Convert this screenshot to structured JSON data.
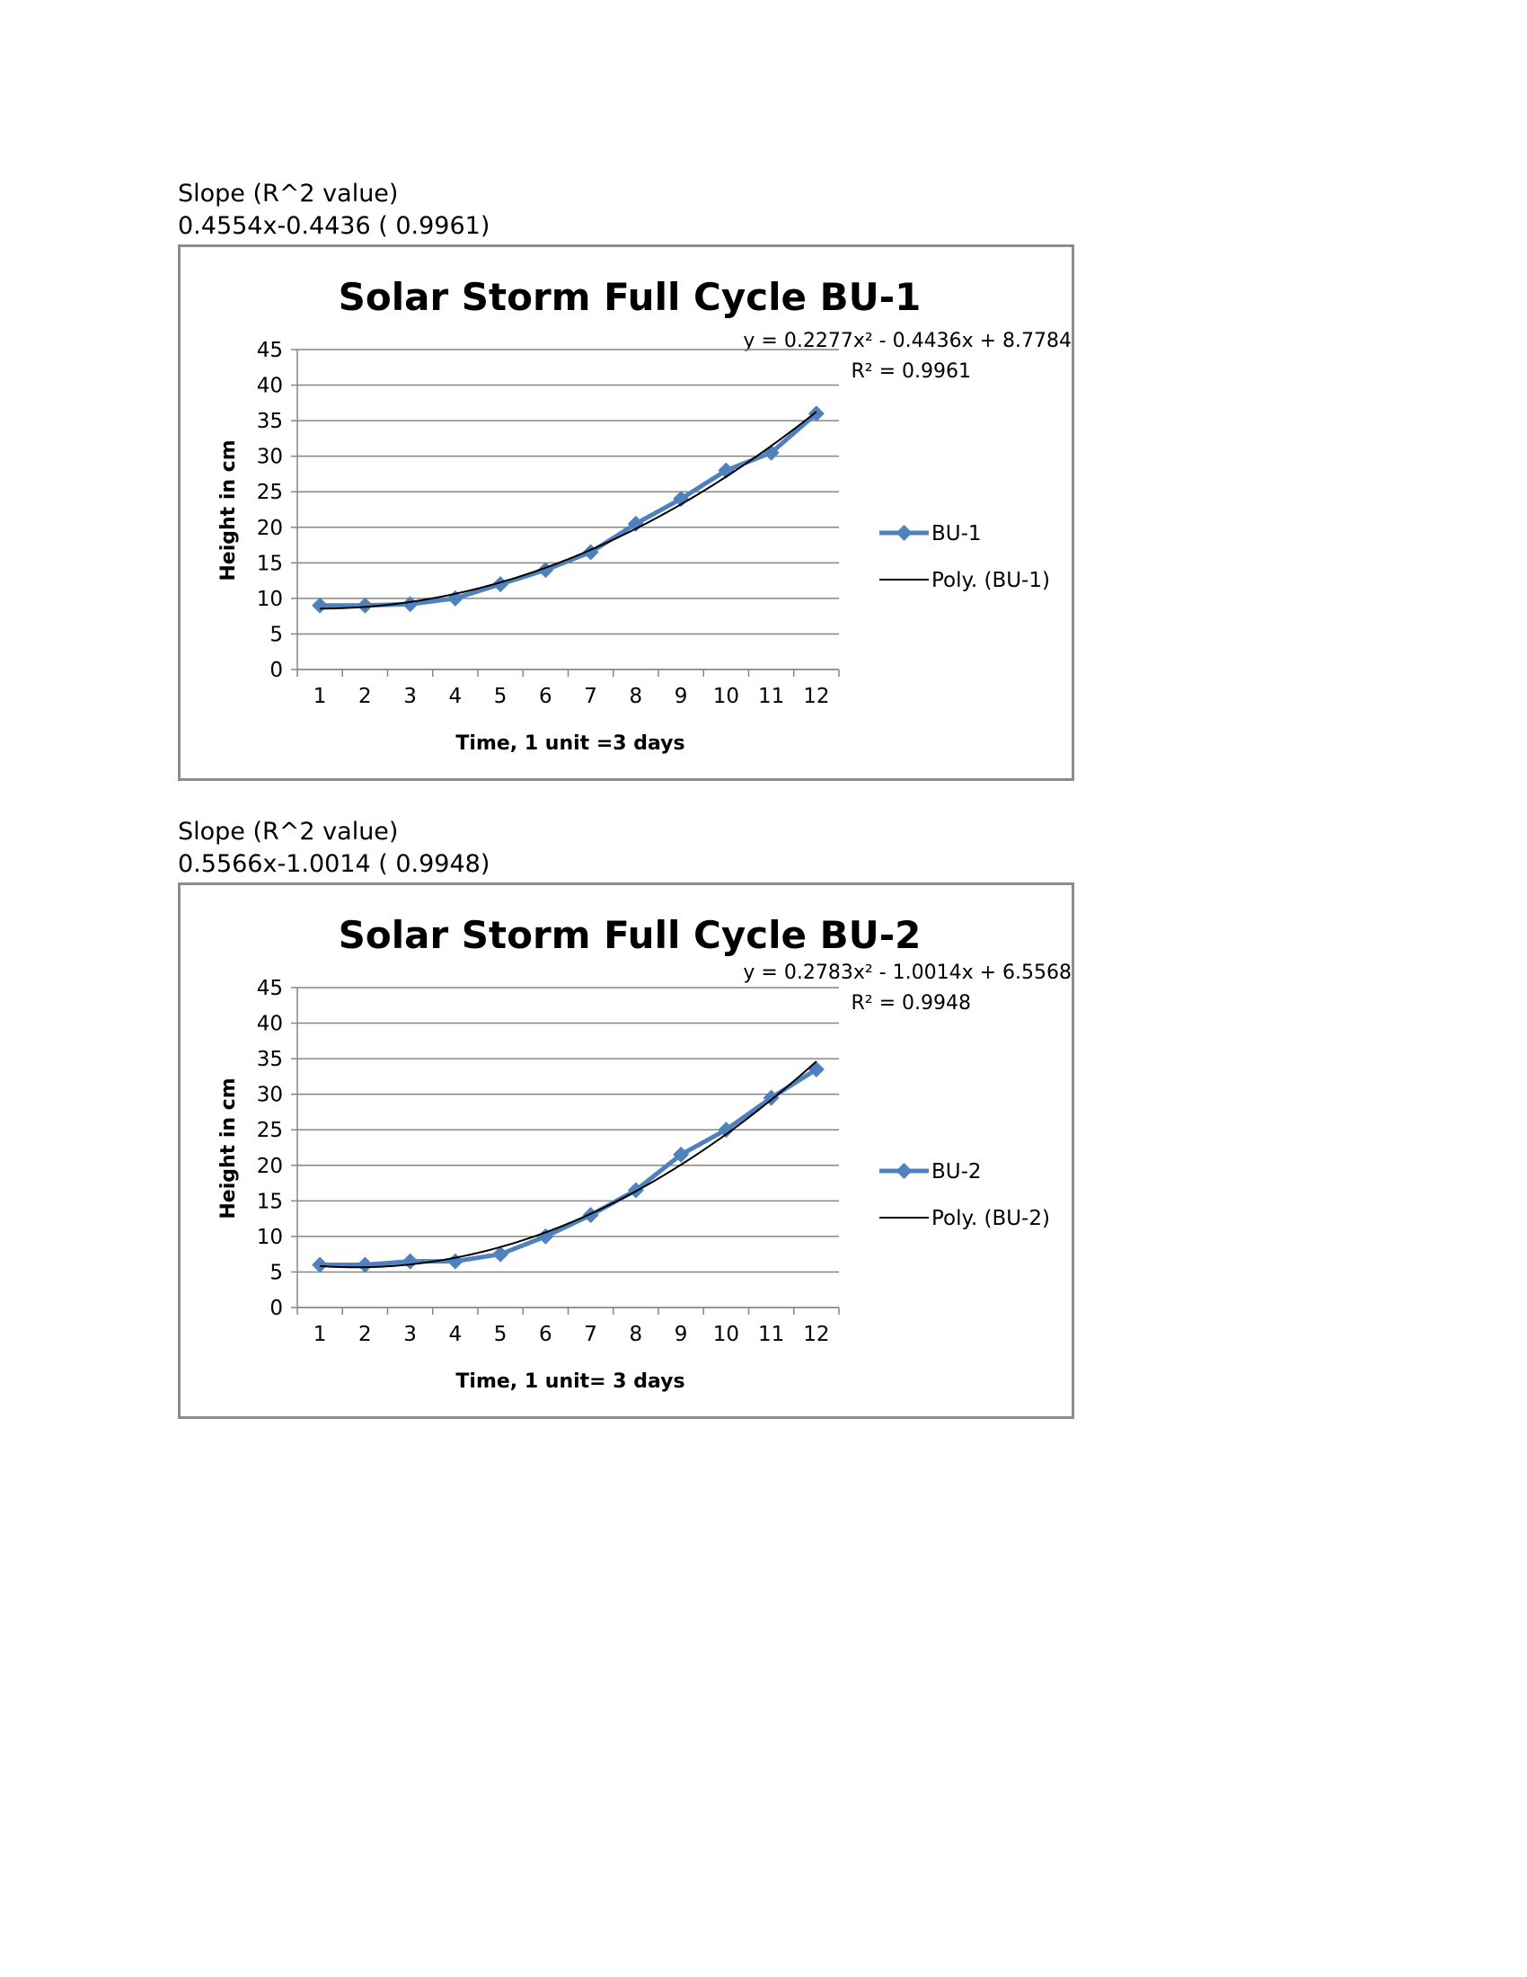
{
  "notes": [
    {
      "label": "Slope (R^2 value)",
      "value": "0.4554x-0.4436 ( 0.9961)"
    },
    {
      "label": "Slope (R^2 value)",
      "value": "0.5566x-1.0014 ( 0.9948)"
    }
  ],
  "colors": {
    "series": "#4f81bd",
    "trend": "#000000",
    "grid": "#868686",
    "border": "#8c8c8c"
  },
  "chart_data": [
    {
      "type": "line",
      "title": "Solar Storm Full Cycle BU-1",
      "xlabel": "Time, 1 unit =3 days",
      "ylabel": "Height in cm",
      "categories": [
        "1",
        "2",
        "3",
        "4",
        "5",
        "6",
        "7",
        "8",
        "9",
        "10",
        "11",
        "12"
      ],
      "ylim": [
        0,
        45
      ],
      "yticks": [
        "0",
        "5",
        "10",
        "15",
        "20",
        "25",
        "30",
        "35",
        "40",
        "45"
      ],
      "grid": true,
      "legend_position": "right",
      "series": [
        {
          "name": "BU-1",
          "values": [
            9,
            9,
            9.2,
            10,
            12,
            14,
            16.5,
            20.5,
            24,
            28,
            30.5,
            36
          ],
          "marker": "diamond"
        }
      ],
      "trendline": {
        "name": "Poly. (BU-1)",
        "equation": "y = 0.2277x² - 0.4436x + 8.7784",
        "r2": "R² = 0.9961",
        "coeffs": [
          0.2277,
          -0.4436,
          8.7784
        ]
      }
    },
    {
      "type": "line",
      "title": "Solar Storm Full Cycle BU-2",
      "xlabel": "Time, 1 unit= 3 days",
      "ylabel": "Height in cm",
      "categories": [
        "1",
        "2",
        "3",
        "4",
        "5",
        "6",
        "7",
        "8",
        "9",
        "10",
        "11",
        "12"
      ],
      "ylim": [
        0,
        45
      ],
      "yticks": [
        "0",
        "5",
        "10",
        "15",
        "20",
        "25",
        "30",
        "35",
        "40",
        "45"
      ],
      "grid": true,
      "legend_position": "right",
      "series": [
        {
          "name": "BU-2",
          "values": [
            6,
            6,
            6.5,
            6.5,
            7.5,
            10,
            13,
            16.5,
            21.5,
            25,
            29.5,
            33.5
          ],
          "marker": "diamond"
        }
      ],
      "trendline": {
        "name": "Poly. (BU-2)",
        "equation": "y = 0.2783x² - 1.0014x + 6.5568",
        "r2": "R² = 0.9948",
        "coeffs": [
          0.2783,
          -1.0014,
          6.5568
        ]
      }
    }
  ]
}
